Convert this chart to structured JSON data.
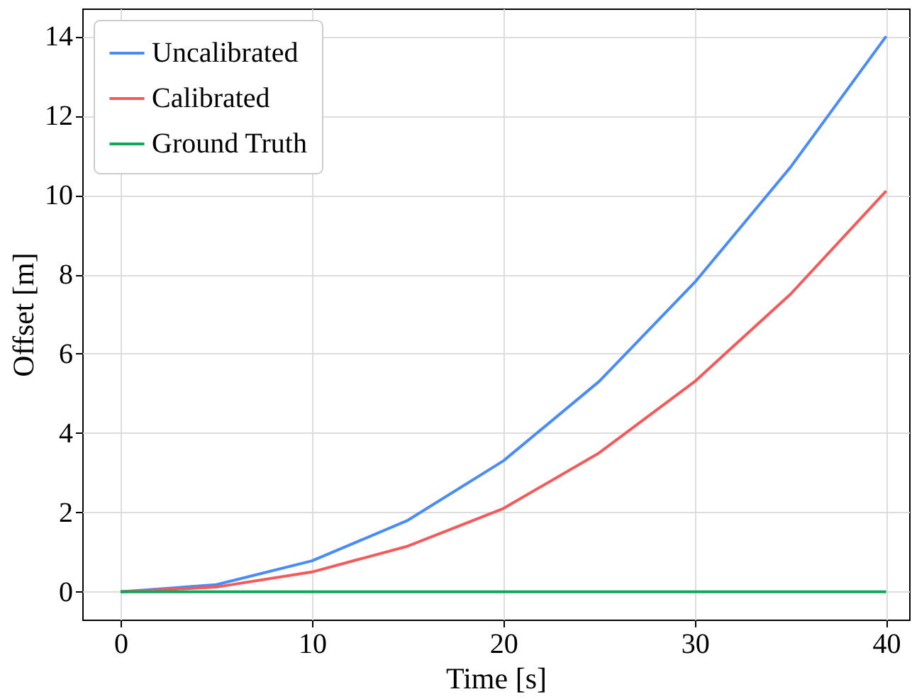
{
  "chart_data": {
    "type": "line",
    "xlabel": "Time [s]",
    "ylabel": "Offset [m]",
    "x": [
      0,
      5,
      10,
      15,
      20,
      25,
      30,
      35,
      40
    ],
    "series": [
      {
        "name": "Uncalibrated",
        "color": "#4a8cf7",
        "values": [
          0,
          0.18,
          0.78,
          1.8,
          3.3,
          5.3,
          7.8,
          10.7,
          14
        ]
      },
      {
        "name": "Calibrated",
        "color": "#f55a5a",
        "values": [
          0,
          0.12,
          0.5,
          1.15,
          2.1,
          3.5,
          5.3,
          7.5,
          10.1
        ]
      },
      {
        "name": "Ground Truth",
        "color": "#0fa85a",
        "values": [
          0,
          0,
          0,
          0,
          0,
          0,
          0,
          0,
          0
        ]
      }
    ],
    "xlim": [
      -2,
      41.2
    ],
    "xticks": [
      0,
      10,
      20,
      30,
      40
    ],
    "ylim": [
      -0.7,
      14.7
    ],
    "yticks": [
      0,
      2,
      4,
      6,
      8,
      10,
      12,
      14
    ],
    "grid": true,
    "legend": "top left",
    "line_style": "solid",
    "marker": "none"
  }
}
